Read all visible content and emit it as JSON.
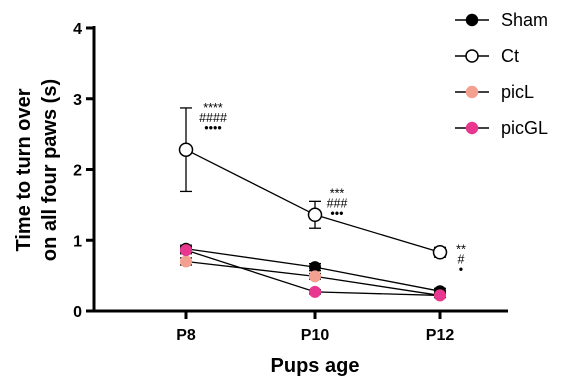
{
  "chart_data": {
    "type": "line",
    "xlabel": "Pups age",
    "ylabel": [
      "Time to turn over",
      "on all four paws (s)"
    ],
    "categories": [
      "P8",
      "P10",
      "P12"
    ],
    "ylim": [
      0,
      4
    ],
    "yticks": [
      0,
      1,
      2,
      3,
      4
    ],
    "grid": false,
    "legend_position": "top-right",
    "series": [
      {
        "name": "Sham",
        "values": [
          0.88,
          0.62,
          0.28
        ],
        "marker": "filled-circle",
        "color": "#000000",
        "error": [
          0.05,
          0.05,
          0.04
        ]
      },
      {
        "name": "Ct",
        "values": [
          2.28,
          1.36,
          0.83
        ],
        "marker": "open-circle",
        "color": "#000000",
        "error": [
          0.59,
          0.19,
          0.07
        ]
      },
      {
        "name": "picL",
        "values": [
          0.7,
          0.49,
          0.22
        ],
        "marker": "filled-circle",
        "color": "#f4a090",
        "error": [
          0.05,
          0.04,
          0.03
        ]
      },
      {
        "name": "picGL",
        "values": [
          0.86,
          0.27,
          0.22
        ],
        "marker": "filled-circle",
        "color": "#e8378f",
        "error": [
          0.05,
          0.03,
          0.03
        ]
      }
    ],
    "annotations": [
      {
        "category": "P8",
        "lines": [
          "****",
          "####",
          "••••"
        ]
      },
      {
        "category": "P10",
        "lines": [
          "***",
          "###",
          "•••"
        ]
      },
      {
        "category": "P12",
        "lines": [
          "**",
          "#",
          "•"
        ]
      }
    ]
  }
}
